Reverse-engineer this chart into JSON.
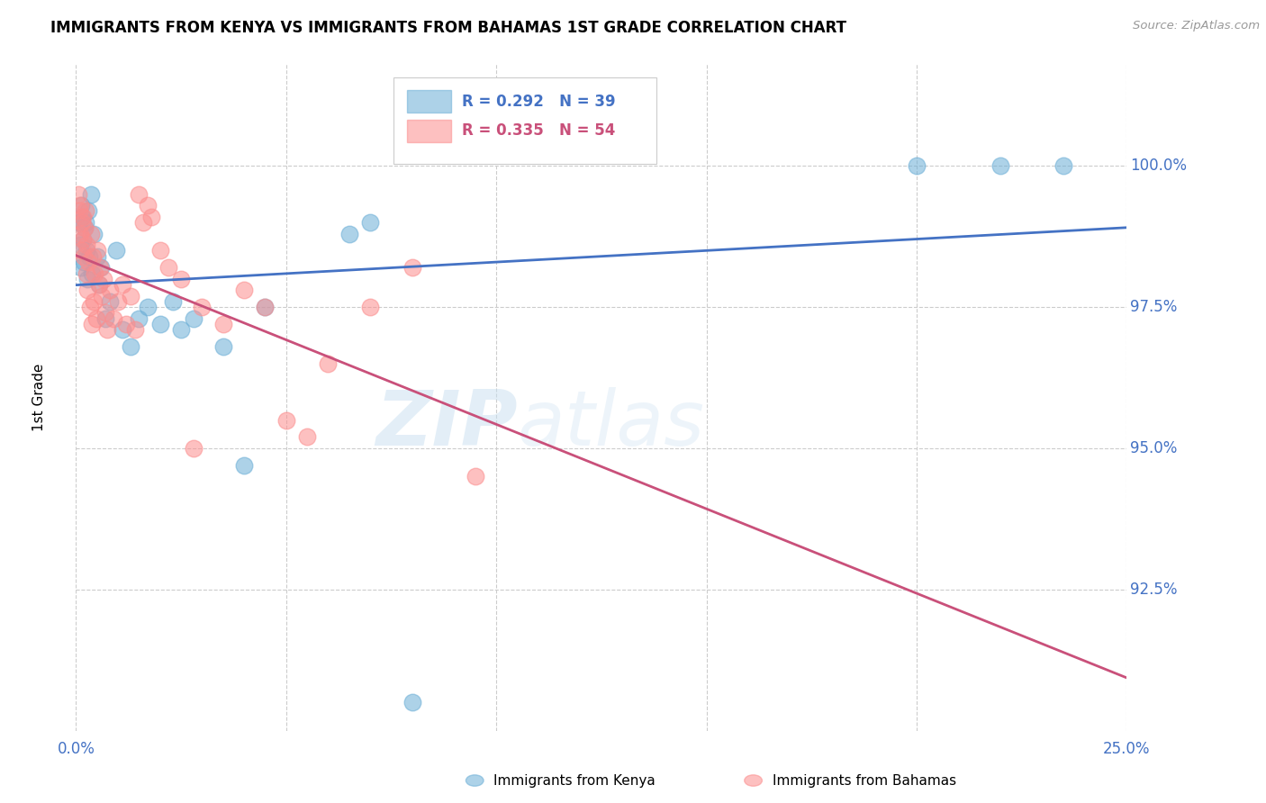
{
  "title": "IMMIGRANTS FROM KENYA VS IMMIGRANTS FROM BAHAMAS 1ST GRADE CORRELATION CHART",
  "source": "Source: ZipAtlas.com",
  "ylabel": "1st Grade",
  "xlim": [
    0.0,
    25.0
  ],
  "ylim": [
    90.0,
    101.8
  ],
  "ytick_vals": [
    92.5,
    95.0,
    97.5,
    100.0
  ],
  "ytick_labels": [
    "92.5%",
    "95.0%",
    "97.5%",
    "100.0%"
  ],
  "xtick_vals": [
    0.0,
    5.0,
    10.0,
    15.0,
    20.0,
    25.0
  ],
  "xtick_labels": [
    "0.0%",
    "",
    "",
    "",
    "",
    "25.0%"
  ],
  "kenya_color": "#6baed6",
  "bahamas_color": "#fc8d8d",
  "kenya_R": 0.292,
  "kenya_N": 39,
  "bahamas_R": 0.335,
  "bahamas_N": 54,
  "kenya_legend": "Immigrants from Kenya",
  "bahamas_legend": "Immigrants from Bahamas",
  "kenya_x": [
    0.08,
    0.1,
    0.12,
    0.13,
    0.15,
    0.17,
    0.18,
    0.2,
    0.22,
    0.25,
    0.27,
    0.3,
    0.32,
    0.35,
    0.38,
    0.42,
    0.5,
    0.55,
    0.6,
    0.7,
    0.8,
    0.95,
    1.1,
    1.3,
    1.5,
    1.7,
    2.0,
    2.3,
    2.5,
    2.8,
    3.5,
    4.0,
    4.5,
    6.5,
    7.0,
    8.0,
    20.0,
    22.0,
    23.5
  ],
  "kenya_y": [
    99.0,
    98.6,
    99.3,
    98.2,
    99.1,
    98.7,
    98.3,
    98.9,
    99.0,
    98.5,
    98.0,
    99.2,
    98.4,
    99.5,
    98.1,
    98.8,
    98.4,
    97.9,
    98.2,
    97.3,
    97.6,
    98.5,
    97.1,
    96.8,
    97.3,
    97.5,
    97.2,
    97.6,
    97.1,
    97.3,
    96.8,
    94.7,
    97.5,
    98.8,
    99.0,
    90.5,
    100.0,
    100.0,
    100.0
  ],
  "bahamas_x": [
    0.05,
    0.07,
    0.09,
    0.11,
    0.12,
    0.14,
    0.16,
    0.17,
    0.19,
    0.2,
    0.22,
    0.24,
    0.26,
    0.28,
    0.3,
    0.33,
    0.35,
    0.38,
    0.4,
    0.42,
    0.45,
    0.48,
    0.5,
    0.55,
    0.58,
    0.62,
    0.65,
    0.7,
    0.75,
    0.8,
    0.9,
    1.0,
    1.1,
    1.2,
    1.3,
    1.4,
    1.5,
    1.6,
    1.7,
    1.8,
    2.0,
    2.2,
    2.5,
    2.8,
    3.0,
    3.5,
    4.0,
    4.5,
    5.0,
    5.5,
    6.0,
    7.0,
    8.0,
    9.5
  ],
  "bahamas_y": [
    99.5,
    99.2,
    98.8,
    99.3,
    98.5,
    99.0,
    98.7,
    99.1,
    98.4,
    98.9,
    99.2,
    98.1,
    98.6,
    97.8,
    98.3,
    97.5,
    98.8,
    97.2,
    98.4,
    97.6,
    98.1,
    97.3,
    98.5,
    97.9,
    98.2,
    97.7,
    98.0,
    97.4,
    97.1,
    97.8,
    97.3,
    97.6,
    97.9,
    97.2,
    97.7,
    97.1,
    99.5,
    99.0,
    99.3,
    99.1,
    98.5,
    98.2,
    98.0,
    95.0,
    97.5,
    97.2,
    97.8,
    97.5,
    95.5,
    95.2,
    96.5,
    97.5,
    98.2,
    94.5
  ],
  "watermark_zip": "ZIP",
  "watermark_atlas": "atlas",
  "background_color": "#ffffff",
  "grid_color": "#cccccc",
  "trend_blue": "#4472c4",
  "trend_pink": "#c9507a",
  "ytick_color": "#4472c4",
  "xtick_color": "#4472c4"
}
